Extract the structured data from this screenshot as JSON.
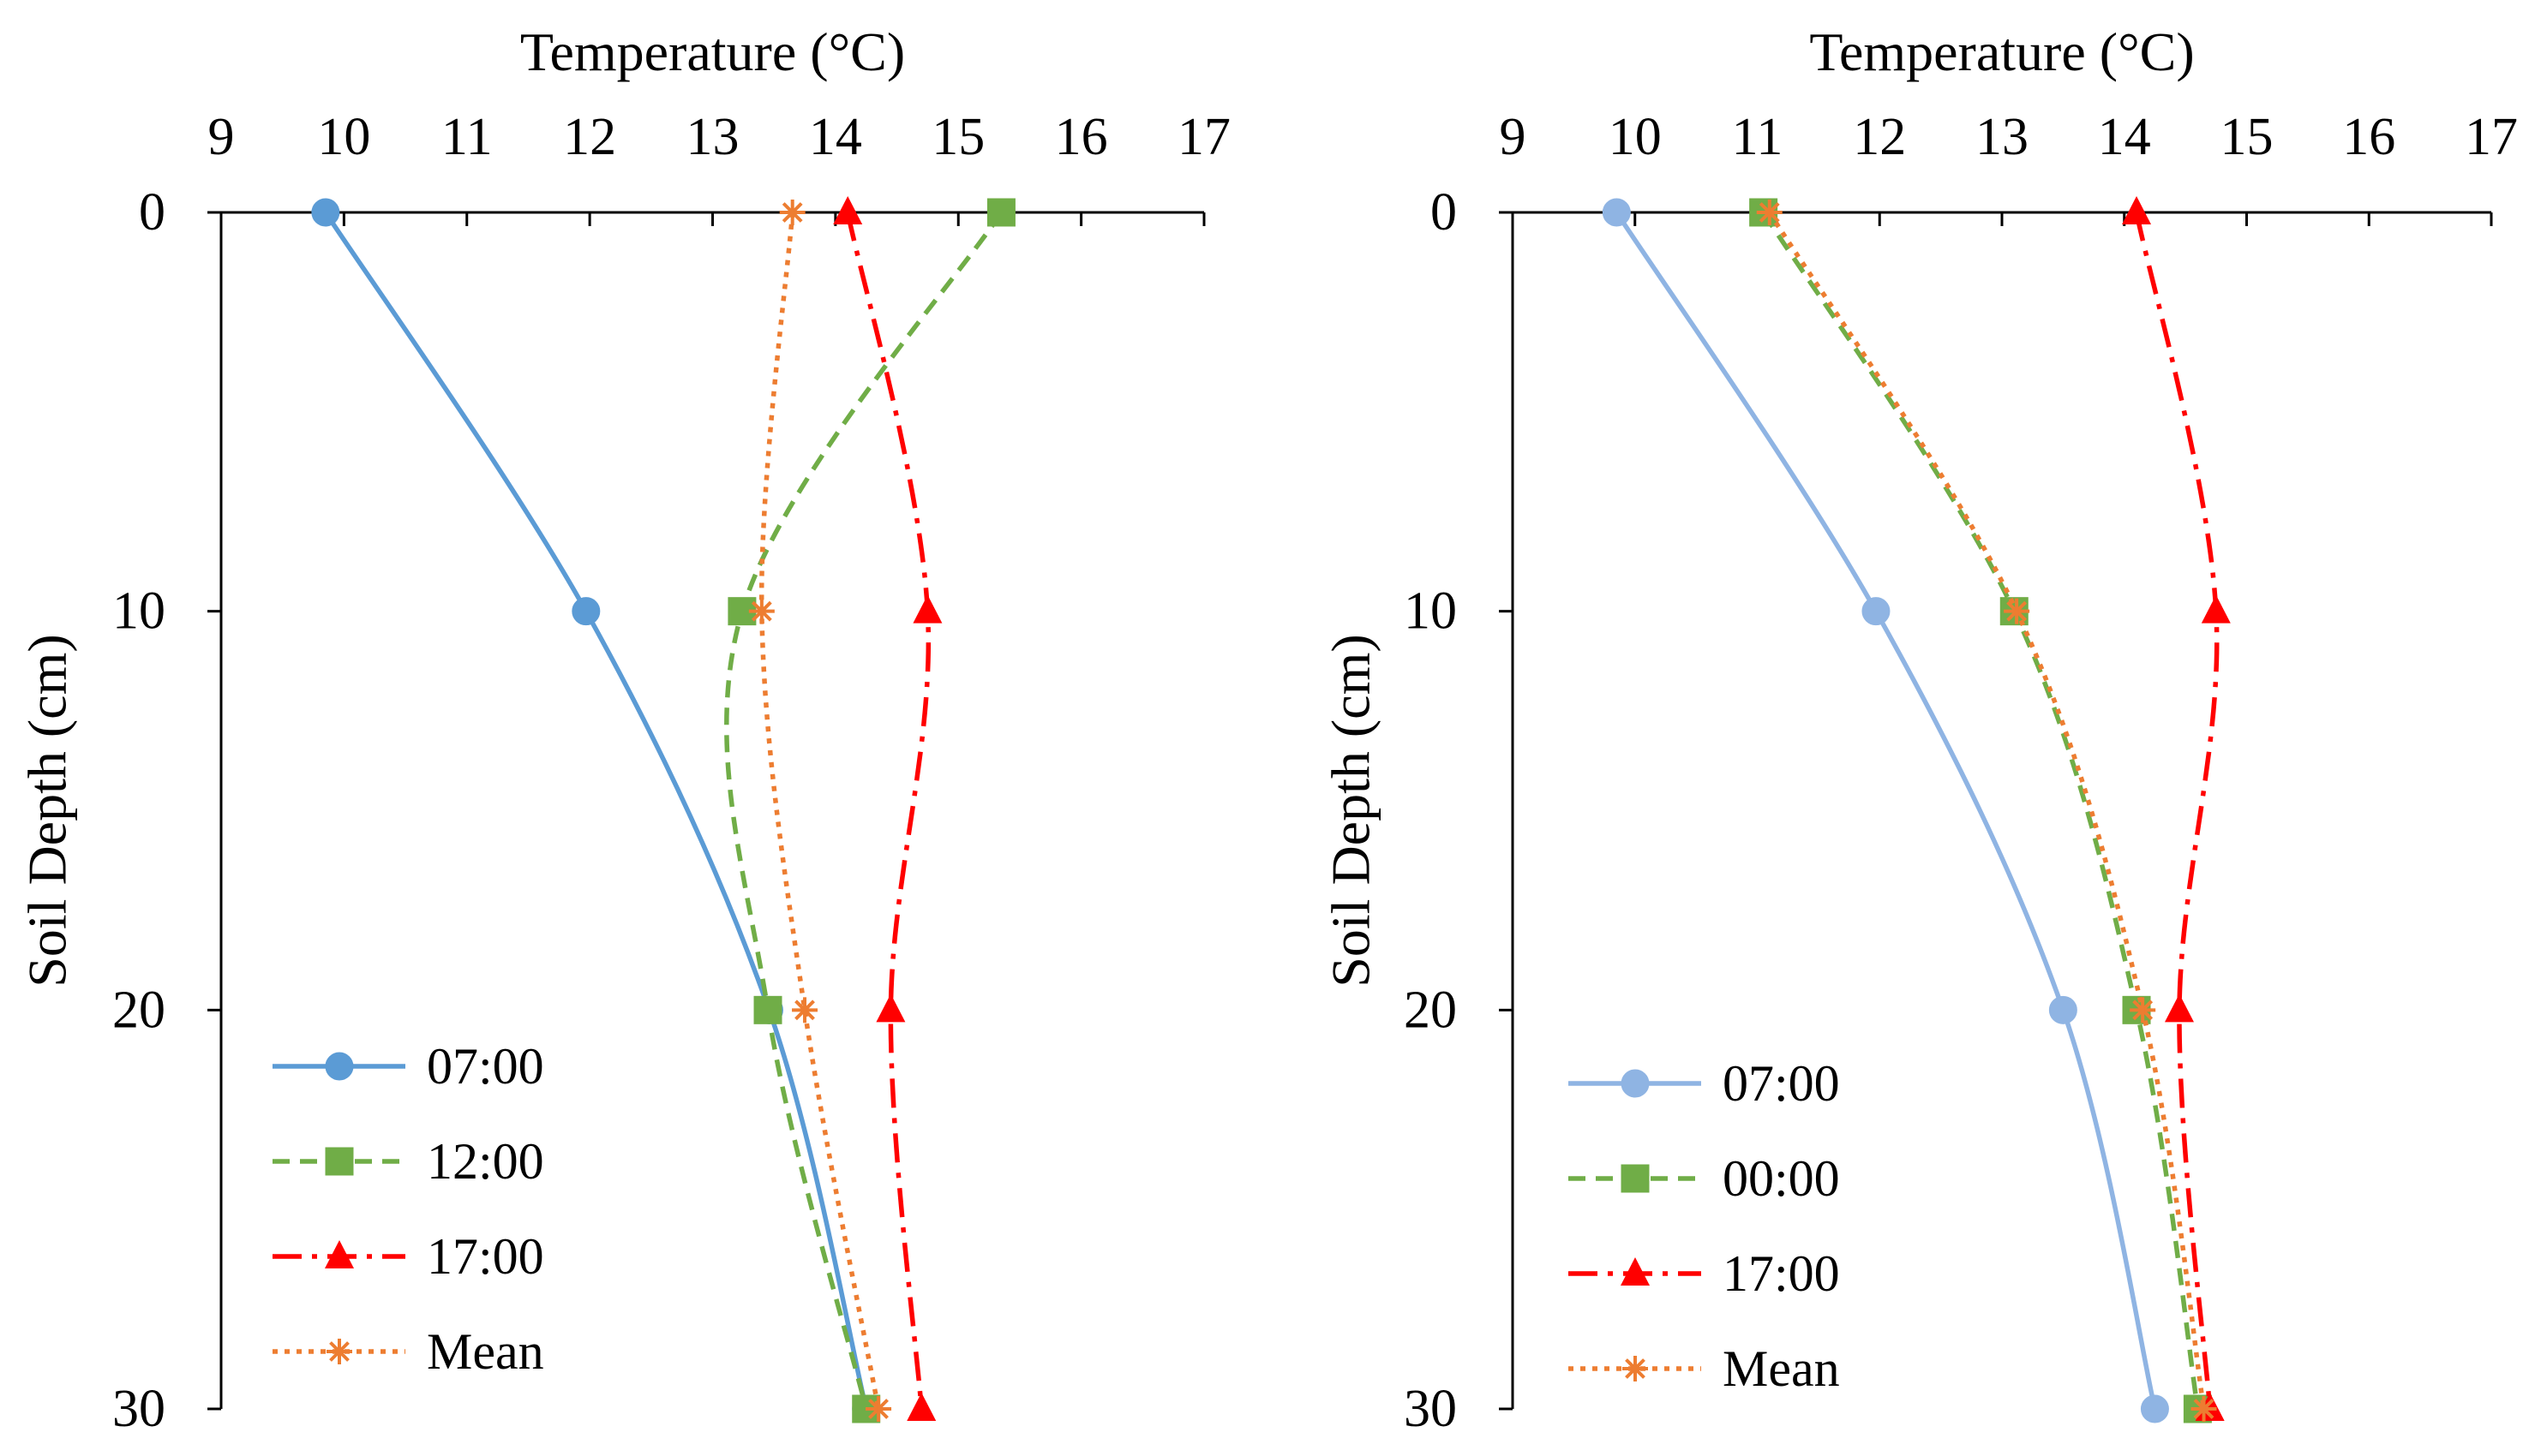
{
  "chart_data": [
    {
      "type": "line",
      "orientation": "depth-profile",
      "title": "",
      "xlabel": "Temperature (°C)",
      "ylabel": "Soil Depth (cm)",
      "xlim": [
        9,
        17
      ],
      "ylim": [
        0,
        30
      ],
      "x_ticks": [
        "9",
        "10",
        "11",
        "12",
        "13",
        "14",
        "15",
        "16",
        "17"
      ],
      "y_ticks": [
        "0",
        "10",
        "20",
        "30"
      ],
      "depths": [
        0,
        10,
        20,
        30
      ],
      "legend_position": "bottom-left",
      "series": [
        {
          "name": "07:00",
          "values": [
            9.85,
            11.97,
            13.46,
            14.25
          ],
          "color": "#5B9BD5",
          "dash": "solid",
          "marker": "circle"
        },
        {
          "name": "12:00",
          "values": [
            15.35,
            13.24,
            13.45,
            14.25
          ],
          "color": "#70AD47",
          "dash": "dashed",
          "marker": "square"
        },
        {
          "name": "17:00",
          "values": [
            14.1,
            14.75,
            14.45,
            14.7
          ],
          "color": "#FF0000",
          "dash": "dashdot",
          "marker": "triangle"
        },
        {
          "name": "Mean",
          "values": [
            13.65,
            13.4,
            13.75,
            14.35
          ],
          "color": "#ED7D31",
          "dash": "dotted",
          "marker": "asterisk"
        }
      ]
    },
    {
      "type": "line",
      "orientation": "depth-profile",
      "title": "",
      "xlabel": "Temperature (°C)",
      "ylabel": "Soil Depth (cm)",
      "xlim": [
        9,
        17
      ],
      "ylim": [
        0,
        30
      ],
      "x_ticks": [
        "9",
        "10",
        "11",
        "12",
        "13",
        "14",
        "15",
        "16",
        "17"
      ],
      "y_ticks": [
        "0",
        "10",
        "20",
        "30"
      ],
      "depths": [
        0,
        10,
        20,
        30
      ],
      "legend_position": "bottom-left",
      "series": [
        {
          "name": "07:00",
          "values": [
            9.85,
            11.97,
            13.5,
            14.25
          ],
          "color": "#8FB4E3",
          "dash": "solid",
          "marker": "circle"
        },
        {
          "name": "00:00",
          "values": [
            11.05,
            13.1,
            14.1,
            14.6
          ],
          "color": "#70AD47",
          "dash": "dashed",
          "marker": "square"
        },
        {
          "name": "17:00",
          "values": [
            14.1,
            14.75,
            14.45,
            14.7
          ],
          "color": "#FF0000",
          "dash": "dashdot",
          "marker": "triangle"
        },
        {
          "name": "Mean",
          "values": [
            11.1,
            13.12,
            14.15,
            14.65
          ],
          "color": "#ED7D31",
          "dash": "dotted",
          "marker": "asterisk"
        }
      ]
    }
  ]
}
